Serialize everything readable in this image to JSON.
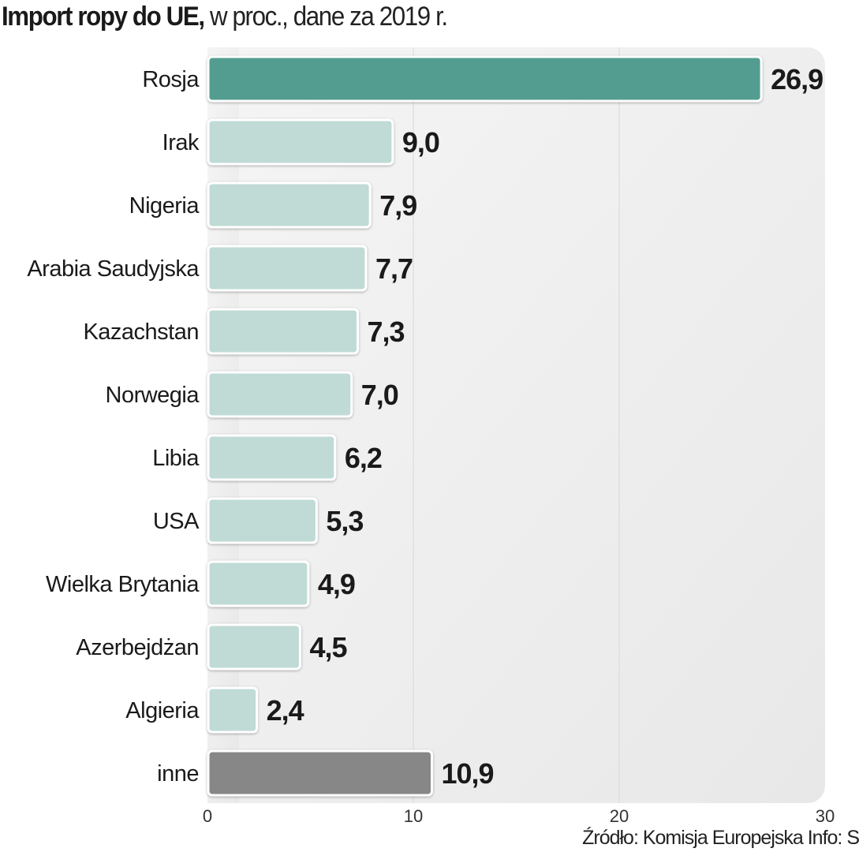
{
  "title": {
    "bold": "Import ropy do UE,",
    "light": "w proc., dane za 2019 r."
  },
  "source": "Źródło: Komisja Europejska  Info: S",
  "colors": {
    "highlight": "#529d90",
    "normal": "#c0dbd5",
    "other": "#878787",
    "panel": "#efefef"
  },
  "chart_data": {
    "type": "bar",
    "orientation": "horizontal",
    "title": "Import ropy do UE, w proc., dane za 2019 r.",
    "categories": [
      "Rosja",
      "Irak",
      "Nigeria",
      "Arabia Saudyjska",
      "Kazachstan",
      "Norwegia",
      "Libia",
      "USA",
      "Wielka Brytania",
      "Azerbejdżan",
      "Algieria",
      "inne"
    ],
    "values": [
      26.9,
      9.0,
      7.9,
      7.7,
      7.3,
      7.0,
      6.2,
      5.3,
      4.9,
      4.5,
      2.4,
      10.9
    ],
    "value_labels": [
      "26,9",
      "9,0",
      "7,9",
      "7,7",
      "7,3",
      "7,0",
      "6,2",
      "5,3",
      "4,9",
      "4,5",
      "2,4",
      "10,9"
    ],
    "xlim": [
      0,
      30
    ],
    "xticks": [
      0,
      10,
      20,
      30
    ],
    "xlabel": "",
    "ylabel": "",
    "grid": true
  }
}
